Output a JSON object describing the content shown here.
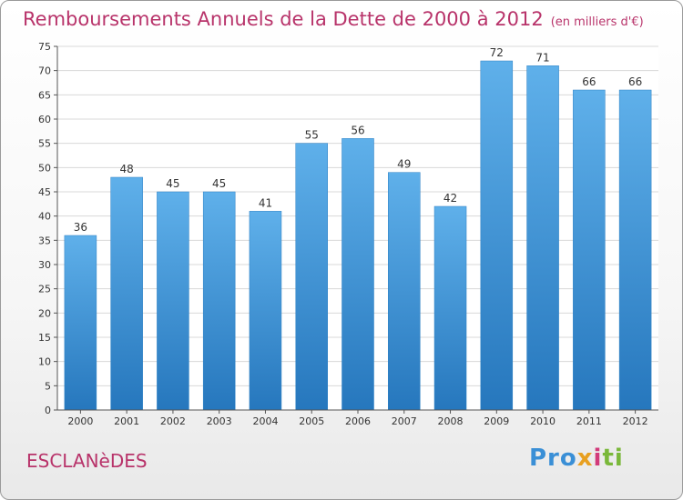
{
  "chart_data": {
    "type": "bar",
    "title": "Remboursements Annuels de la Dette de 2000 à 2012",
    "subtitle": "(en milliers d'€)",
    "categories": [
      "2000",
      "2001",
      "2002",
      "2003",
      "2004",
      "2005",
      "2006",
      "2007",
      "2008",
      "2009",
      "2010",
      "2011",
      "2012"
    ],
    "values": [
      36,
      48,
      45,
      45,
      41,
      55,
      56,
      49,
      42,
      72,
      71,
      66,
      66
    ],
    "ylim": [
      0,
      75
    ],
    "yticks": [
      0,
      5,
      10,
      15,
      20,
      25,
      30,
      35,
      40,
      45,
      50,
      55,
      60,
      65,
      70,
      75
    ],
    "grid": true,
    "bar_color": "#5aabe4",
    "bar_color_dark": "#2a7fc4"
  },
  "footer": {
    "commune": "ESCLANèDES",
    "logo_parts": [
      "Pro",
      "x",
      "i",
      "ti"
    ]
  },
  "colors": {
    "title": "#b8336a"
  }
}
